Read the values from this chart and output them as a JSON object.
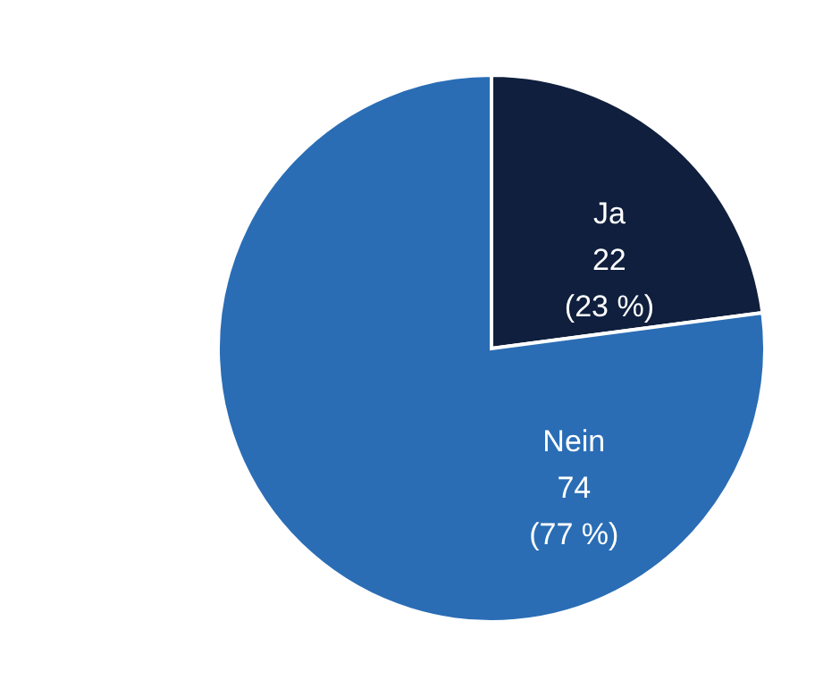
{
  "chart_data": {
    "type": "pie",
    "categories": [
      "Ja",
      "Nein"
    ],
    "values": [
      22,
      74
    ],
    "value_labels": [
      "22\n(23 %)",
      "74\n(77 %)"
    ],
    "colors": [
      "#0f1f3d",
      "#2a6db5"
    ]
  }
}
